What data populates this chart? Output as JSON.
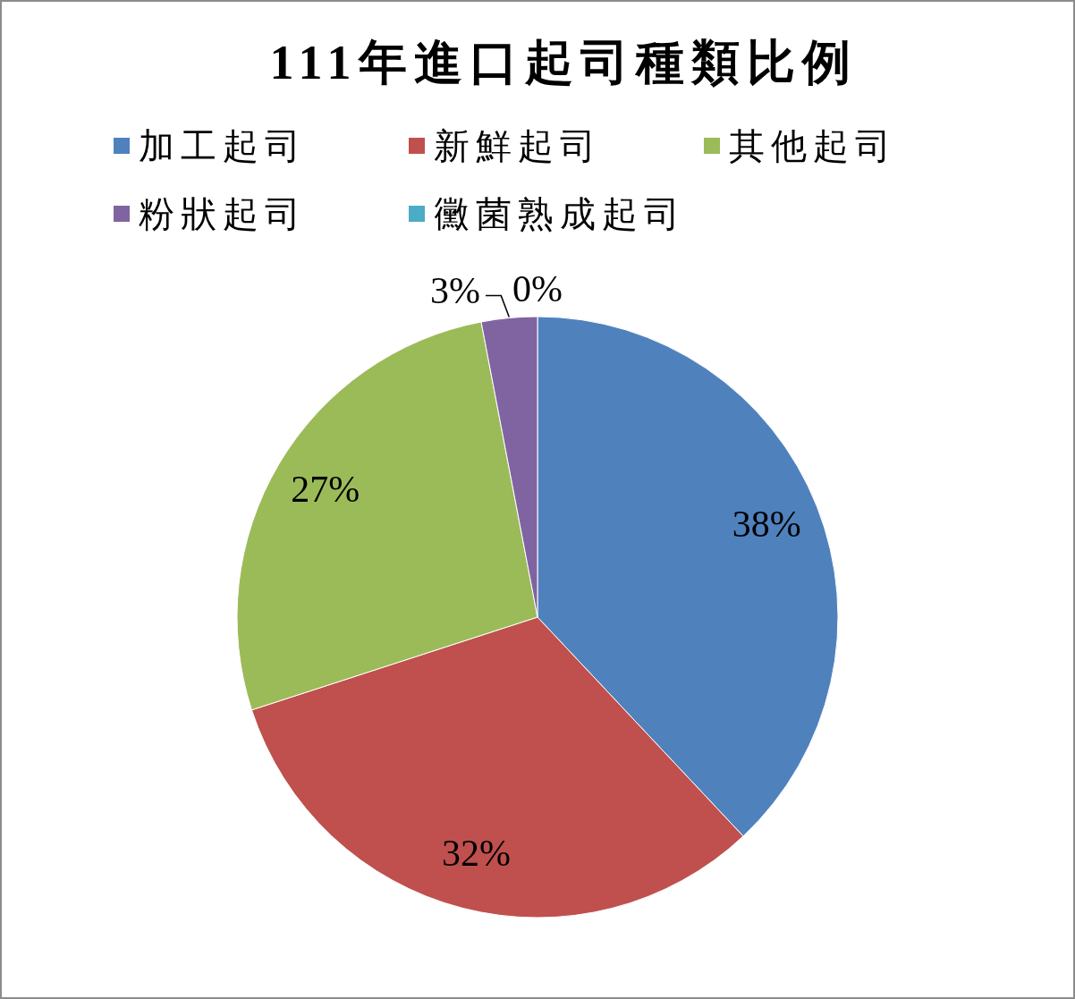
{
  "chart_data": {
    "type": "pie",
    "title": "111年進口起司種類比例",
    "categories": [
      "加工起司",
      "新鮮起司",
      "其他起司",
      "粉狀起司",
      "黴菌熟成起司"
    ],
    "values": [
      38,
      32,
      27,
      3,
      0
    ],
    "value_labels": [
      "38%",
      "32%",
      "27%",
      "3%",
      "0%"
    ],
    "colors": [
      "#4f81bd",
      "#c0504d",
      "#9bbb59",
      "#8064a2",
      "#4bacc6"
    ],
    "legend": "top"
  }
}
